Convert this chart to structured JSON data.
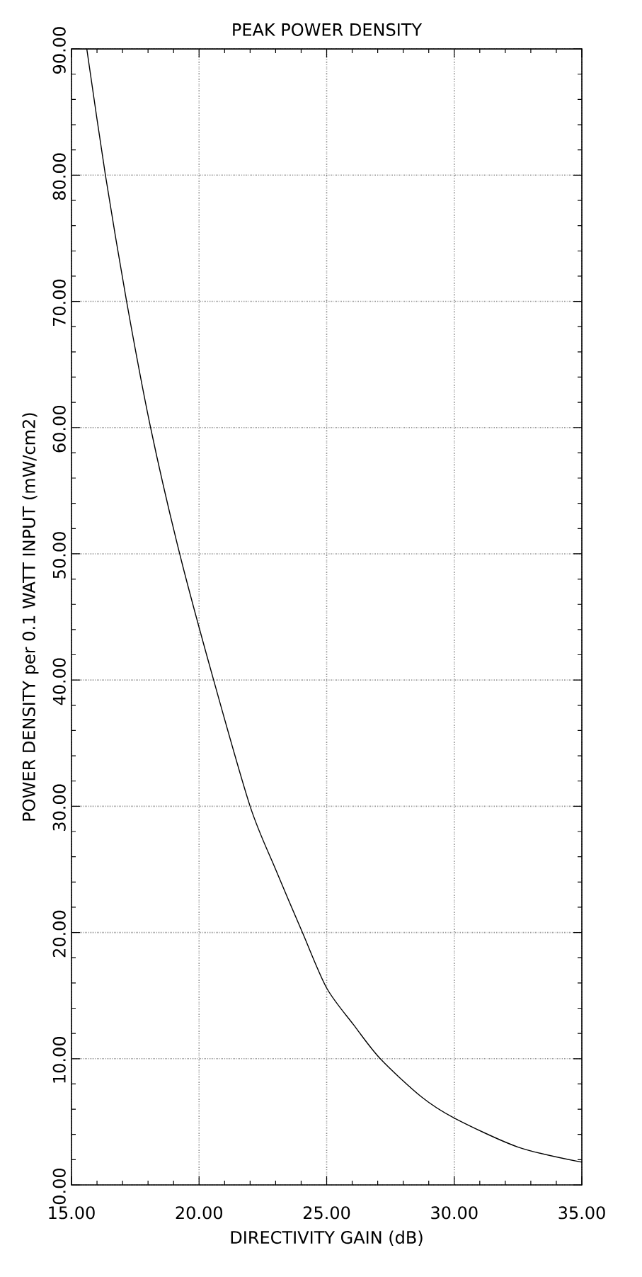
{
  "chart_data": {
    "type": "line",
    "title": "PEAK POWER DENSITY",
    "xlabel": "DIRECTIVITY GAIN  (dB)",
    "ylabel": "POWER DENSITY per 0.1 WATT INPUT  (mW/cm2)",
    "x": [
      15.6,
      16.33,
      17.16,
      18.1,
      19.24,
      20.57,
      22.0,
      23.0,
      24.05,
      25.0,
      26.05,
      27.1,
      28.7,
      30.0,
      32.5,
      35.0
    ],
    "series": [
      {
        "color": "#000000",
        "values": [
          90,
          80,
          70,
          60,
          50,
          40,
          30,
          25,
          20,
          15.6,
          12.7,
          10,
          7.0,
          5.3,
          3.0,
          1.8
        ]
      }
    ],
    "xlim": [
      15,
      35
    ],
    "ylim": [
      0,
      90
    ],
    "xticks": [
      {
        "value": 15,
        "label": "15.00"
      },
      {
        "value": 20,
        "label": "20.00"
      },
      {
        "value": 25,
        "label": "25.00"
      },
      {
        "value": 30,
        "label": "30.00"
      },
      {
        "value": 35,
        "label": "35.00"
      }
    ],
    "yticks": [
      {
        "value": 0,
        "label": "0.00"
      },
      {
        "value": 10,
        "label": "10.00"
      },
      {
        "value": 20,
        "label": "20.00"
      },
      {
        "value": 30,
        "label": "30.00"
      },
      {
        "value": 40,
        "label": "40.00"
      },
      {
        "value": 50,
        "label": "50.00"
      },
      {
        "value": 60,
        "label": "60.00"
      },
      {
        "value": 70,
        "label": "70.00"
      },
      {
        "value": 80,
        "label": "80.00"
      },
      {
        "value": 90,
        "label": "90.00"
      }
    ],
    "grid": true,
    "marker": "none",
    "line_style": "solid"
  }
}
